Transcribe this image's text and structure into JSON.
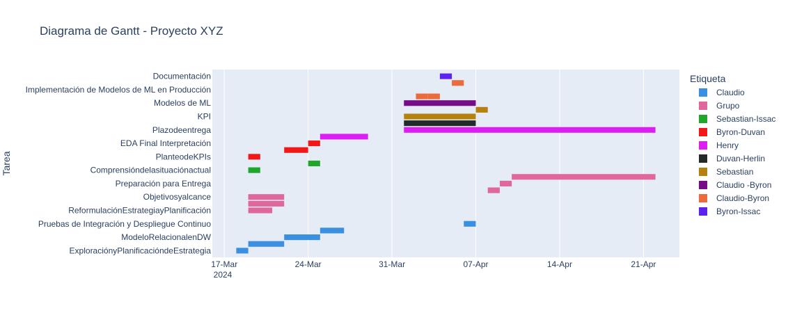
{
  "chart_data": {
    "type": "gantt",
    "title": "Diagrama de Gantt - Proyecto XYZ",
    "ylabel": "Tarea",
    "xlabel": "",
    "x_year_label": "2024",
    "x_ticks": [
      {
        "date": "2024-03-17",
        "label": "17-Mar"
      },
      {
        "date": "2024-03-24",
        "label": "24-Mar"
      },
      {
        "date": "2024-03-31",
        "label": "31-Mar"
      },
      {
        "date": "2024-04-07",
        "label": "07-Apr"
      },
      {
        "date": "2024-04-14",
        "label": "14-Apr"
      },
      {
        "date": "2024-04-21",
        "label": "21-Apr"
      }
    ],
    "xlim": [
      "2024-03-16",
      "2024-04-24"
    ],
    "tasks": [
      "Documentación",
      "Implementación de Modelos de ML en Producción",
      "Modelos de ML",
      "KPI",
      "Plazodeentrega",
      "EDA Final Interpretación",
      "PlanteodeKPIs",
      "Comprensióndelasituaciónactual",
      "Preparación para Entrega",
      "Objetivosyalcance",
      "ReformulaciónEstrategiayPlanificación",
      "Pruebas de Integración y Despliegue Continuo",
      "ModeloRelacionalenDW",
      "ExploraciónyPlanificacióndeEstrategia"
    ],
    "legend_title": "Etiqueta",
    "legend_position": "right",
    "legend": [
      {
        "name": "Claudio",
        "color": "#3a8fe0"
      },
      {
        "name": "Grupo",
        "color": "#e0679b"
      },
      {
        "name": "Sebastian-Issac",
        "color": "#21a62c"
      },
      {
        "name": "Byron-Duvan",
        "color": "#f21818"
      },
      {
        "name": "Henry",
        "color": "#dc1ef2"
      },
      {
        "name": "Duvan-Herlin",
        "color": "#222a2a"
      },
      {
        "name": "Sebastian",
        "color": "#b5820f"
      },
      {
        "name": "Claudio -Byron",
        "color": "#750d86"
      },
      {
        "name": "Claudio-Byron",
        "color": "#ec6b3c"
      },
      {
        "name": "Byron-Issac",
        "color": "#5d22ed"
      }
    ],
    "bars": [
      {
        "task": "Documentación",
        "label": "Byron-Issac",
        "start": "2024-04-04",
        "end": "2024-04-05",
        "offset": 0.0
      },
      {
        "task": "Implementación de Modelos de ML en Producción",
        "label": "Claudio-Byron",
        "start": "2024-04-05",
        "end": "2024-04-06",
        "offset": 0.5
      },
      {
        "task": "Implementación de Modelos de ML en Producción",
        "label": "Claudio-Byron",
        "start": "2024-04-03",
        "end": "2024-04-04",
        "offset": -0.5
      },
      {
        "task": "Modelos de ML",
        "label": "Claudio-Byron",
        "start": "2024-04-02",
        "end": "2024-04-03",
        "offset": 0.5
      },
      {
        "task": "Modelos de ML",
        "label": "Claudio -Byron",
        "start": "2024-04-01",
        "end": "2024-04-07",
        "offset": 0.0
      },
      {
        "task": "KPI",
        "label": "Sebastian",
        "start": "2024-04-07",
        "end": "2024-04-08",
        "offset": 0.5
      },
      {
        "task": "KPI",
        "label": "Sebastian",
        "start": "2024-04-01",
        "end": "2024-04-07",
        "offset": 0.0
      },
      {
        "task": "Plazodeentrega",
        "label": "Duvan-Herlin",
        "start": "2024-04-01",
        "end": "2024-04-07",
        "offset": 0.5
      },
      {
        "task": "Plazodeentrega",
        "label": "Henry",
        "start": "2024-04-01",
        "end": "2024-04-22",
        "offset": 0.0
      },
      {
        "task": "EDA Final Interpretación",
        "label": "Henry",
        "start": "2024-03-25",
        "end": "2024-03-29",
        "offset": 0.5
      },
      {
        "task": "EDA Final Interpretación",
        "label": "Byron-Duvan",
        "start": "2024-03-24",
        "end": "2024-03-25",
        "offset": 0.0
      },
      {
        "task": "PlanteodeKPIs",
        "label": "Byron-Duvan",
        "start": "2024-03-22",
        "end": "2024-03-24",
        "offset": 0.5
      },
      {
        "task": "PlanteodeKPIs",
        "label": "Byron-Duvan",
        "start": "2024-03-19",
        "end": "2024-03-20",
        "offset": 0.0
      },
      {
        "task": "Comprensióndelasituaciónactual",
        "label": "Sebastian-Issac",
        "start": "2024-03-24",
        "end": "2024-03-25",
        "offset": 0.5
      },
      {
        "task": "Comprensióndelasituaciónactual",
        "label": "Sebastian-Issac",
        "start": "2024-03-19",
        "end": "2024-03-20",
        "offset": 0.0
      },
      {
        "task": "Preparación para Entrega",
        "label": "Grupo",
        "start": "2024-04-10",
        "end": "2024-04-22",
        "offset": 0.5
      },
      {
        "task": "Preparación para Entrega",
        "label": "Grupo",
        "start": "2024-04-09",
        "end": "2024-04-10",
        "offset": 0.0
      },
      {
        "task": "Preparación para Entrega",
        "label": "Grupo",
        "start": "2024-04-08",
        "end": "2024-04-09",
        "offset": -0.5
      },
      {
        "task": "Objetivosyalcance",
        "label": "Grupo",
        "start": "2024-03-19",
        "end": "2024-03-22",
        "offset": 0.0
      },
      {
        "task": "Objetivosyalcance",
        "label": "Grupo",
        "start": "2024-03-19",
        "end": "2024-03-22",
        "offset": -0.5
      },
      {
        "task": "ReformulaciónEstrategiayPlanificación",
        "label": "Grupo",
        "start": "2024-03-19",
        "end": "2024-03-21",
        "offset": 0.0
      },
      {
        "task": "Pruebas de Integración y Despliegue Continuo",
        "label": "Claudio",
        "start": "2024-04-06",
        "end": "2024-04-07",
        "offset": 0.0
      },
      {
        "task": "ModeloRelacionalenDW",
        "label": "Claudio",
        "start": "2024-03-25",
        "end": "2024-03-27",
        "offset": 0.5
      },
      {
        "task": "ModeloRelacionalenDW",
        "label": "Claudio",
        "start": "2024-03-22",
        "end": "2024-03-25",
        "offset": 0.0
      },
      {
        "task": "ExploraciónyPlanificacióndeEstrategia",
        "label": "Claudio",
        "start": "2024-03-19",
        "end": "2024-03-22",
        "offset": 0.5
      },
      {
        "task": "ExploraciónyPlanificacióndeEstrategia",
        "label": "Claudio",
        "start": "2024-03-18",
        "end": "2024-03-19",
        "offset": 0.0
      }
    ],
    "grid": true
  }
}
